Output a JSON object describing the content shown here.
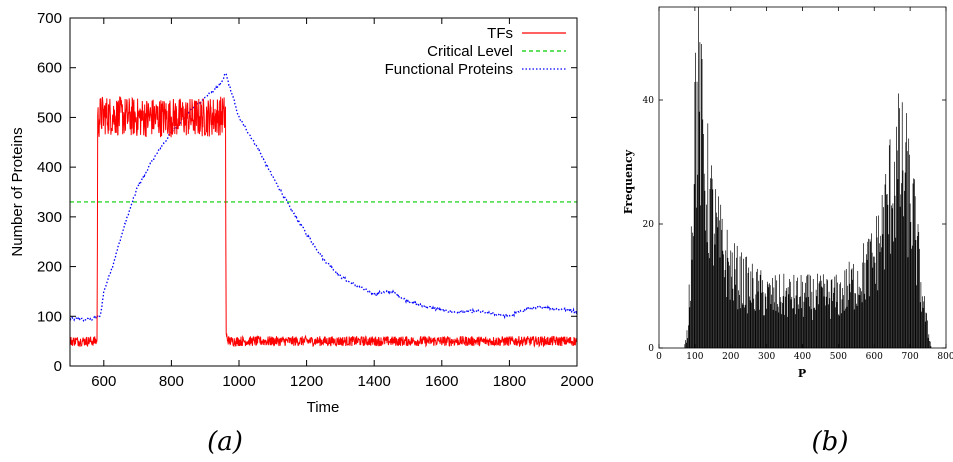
{
  "chart_data": [
    {
      "type": "line",
      "title": "",
      "xlabel": "Time",
      "ylabel": "Number of Proteins",
      "xlim": [
        500,
        2000
      ],
      "ylim": [
        0,
        700
      ],
      "xticks": [
        600,
        800,
        1000,
        1200,
        1400,
        1600,
        1800,
        2000
      ],
      "yticks": [
        0,
        100,
        200,
        300,
        400,
        500,
        600,
        700
      ],
      "legend_position": "top-right",
      "grid": false,
      "caption": "(a)",
      "series": [
        {
          "name": "TFs",
          "color": "#ff0000",
          "style": "solid-noisy",
          "x": [
            500,
            580,
            582,
            590,
            700,
            800,
            900,
            960,
            962,
            970,
            1200,
            1400,
            1600,
            1800,
            2000
          ],
          "values": [
            50,
            50,
            490,
            505,
            500,
            500,
            500,
            505,
            60,
            50,
            50,
            50,
            50,
            50,
            50
          ],
          "noise_amplitude": {
            "low_state": 10,
            "high_state": 40
          }
        },
        {
          "name": "Critical Level",
          "color": "#00cc00",
          "style": "dashed",
          "x": [
            500,
            2000
          ],
          "values": [
            330,
            330
          ]
        },
        {
          "name": "Functional Proteins",
          "color": "#0000ff",
          "style": "dotted",
          "x": [
            500,
            560,
            590,
            600,
            630,
            660,
            700,
            750,
            800,
            850,
            900,
            950,
            960,
            980,
            1000,
            1050,
            1100,
            1150,
            1200,
            1250,
            1300,
            1350,
            1400,
            1450,
            1500,
            1550,
            1600,
            1650,
            1700,
            1750,
            1800,
            1850,
            1900,
            1950,
            2000
          ],
          "values": [
            95,
            93,
            100,
            150,
            210,
            280,
            360,
            420,
            470,
            510,
            540,
            570,
            590,
            545,
            500,
            445,
            380,
            320,
            265,
            215,
            180,
            160,
            145,
            150,
            130,
            120,
            112,
            108,
            110,
            105,
            100,
            115,
            118,
            115,
            110
          ]
        }
      ]
    },
    {
      "type": "bar",
      "title": "",
      "xlabel": "P",
      "ylabel": "Frequency",
      "xlim": [
        0,
        800
      ],
      "ylim": [
        0,
        55
      ],
      "xticks": [
        0,
        100,
        200,
        300,
        400,
        500,
        600,
        700,
        800
      ],
      "yticks": [
        0,
        20,
        40
      ],
      "caption": "(b)",
      "color": "#000000",
      "bin_width": 2,
      "x": [
        70,
        80,
        90,
        100,
        110,
        120,
        130,
        150,
        170,
        200,
        250,
        300,
        350,
        400,
        450,
        500,
        550,
        600,
        630,
        650,
        670,
        690,
        710,
        730,
        750,
        760
      ],
      "values": [
        0,
        3,
        20,
        45,
        50,
        40,
        33,
        25,
        20,
        15,
        12,
        10,
        10,
        10,
        10,
        10,
        13,
        17,
        25,
        32,
        35,
        32,
        25,
        12,
        3,
        0
      ]
    }
  ],
  "colors": {
    "tfs": "#ff0000",
    "critical": "#00cc00",
    "functional": "#0000ff",
    "hist": "#000000"
  }
}
